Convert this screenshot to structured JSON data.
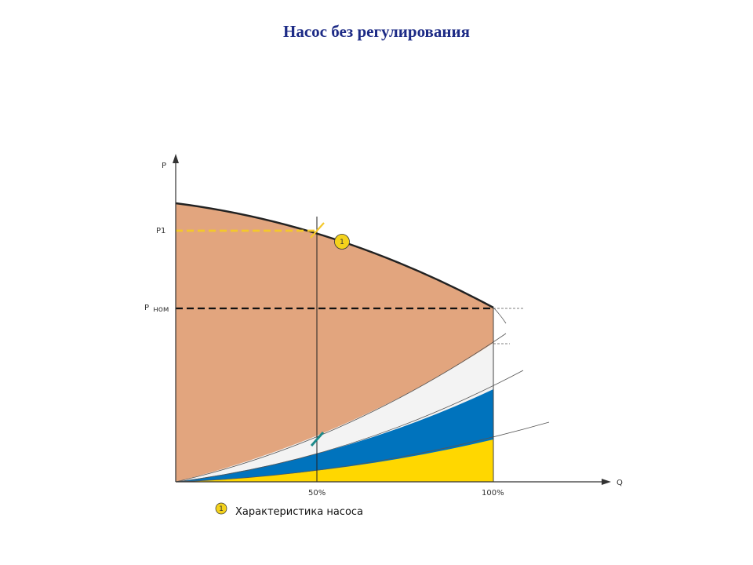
{
  "title": "Насос без регулирования",
  "axes": {
    "y_label": "P",
    "x_label": "Q",
    "p1_label": "P1",
    "pnom_label_main": "P",
    "pnom_label_sub": "ном",
    "tick_50": "50%",
    "tick_100": "100%"
  },
  "callout": {
    "number": "1"
  },
  "legend": {
    "number": "1",
    "text": "Характеристика насоса"
  },
  "colors": {
    "pump_area": "#E2A57E",
    "white_band": "#F3F3F3",
    "blue_band": "#0073BD",
    "yellow_band": "#FFD700",
    "p1_line": "#F4C82A",
    "title": "#1D2B86",
    "valve_marker": "#1C8A8A"
  }
}
